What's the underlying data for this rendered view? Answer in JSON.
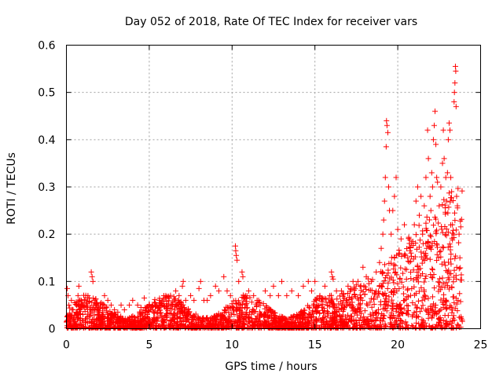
{
  "chart_data": {
    "type": "scatter",
    "title": "Day 052 of 2018, Rate Of TEC Index for receiver vars",
    "xlabel": "GPS time / hours",
    "ylabel": "ROTI / TECUs",
    "xlim": [
      0,
      25
    ],
    "ylim": [
      0,
      0.6
    ],
    "xticks": [
      0,
      5,
      10,
      15,
      20,
      25
    ],
    "xtick_labels": [
      "0",
      "5",
      "10",
      "15",
      "20",
      "25"
    ],
    "yticks": [
      0,
      0.1,
      0.2,
      0.3,
      0.4,
      0.5,
      0.6
    ],
    "ytick_labels": [
      "0",
      "0.1",
      "0.2",
      "0.3",
      "0.4",
      "0.5",
      "0.6"
    ],
    "grid": true,
    "marker": "+",
    "color": "#ff0000",
    "series": [
      {
        "name": "ROTI",
        "points": [
          [
            0.05,
            0.085
          ],
          [
            0.1,
            0.07
          ],
          [
            0.15,
            0.05
          ],
          [
            0.2,
            0.03
          ],
          [
            0.3,
            0.06
          ],
          [
            0.4,
            0.04
          ],
          [
            0.5,
            0.055
          ],
          [
            0.6,
            0.035
          ],
          [
            0.7,
            0.07
          ],
          [
            0.75,
            0.09
          ],
          [
            0.8,
            0.04
          ],
          [
            0.9,
            0.05
          ],
          [
            1.0,
            0.03
          ],
          [
            1.1,
            0.06
          ],
          [
            1.2,
            0.045
          ],
          [
            1.3,
            0.07
          ],
          [
            1.5,
            0.12
          ],
          [
            1.55,
            0.11
          ],
          [
            1.6,
            0.1
          ],
          [
            1.7,
            0.06
          ],
          [
            1.8,
            0.05
          ],
          [
            1.9,
            0.04
          ],
          [
            2.0,
            0.03
          ],
          [
            2.1,
            0.055
          ],
          [
            2.3,
            0.07
          ],
          [
            2.5,
            0.06
          ],
          [
            2.7,
            0.05
          ],
          [
            2.9,
            0.04
          ],
          [
            3.1,
            0.035
          ],
          [
            3.3,
            0.05
          ],
          [
            3.5,
            0.04
          ],
          [
            3.8,
            0.05
          ],
          [
            4.0,
            0.06
          ],
          [
            4.3,
            0.05
          ],
          [
            4.5,
            0.045
          ],
          [
            4.7,
            0.065
          ],
          [
            5.0,
            0.05
          ],
          [
            5.2,
            0.04
          ],
          [
            5.4,
            0.05
          ],
          [
            5.6,
            0.06
          ],
          [
            5.8,
            0.05
          ],
          [
            6.0,
            0.07
          ],
          [
            6.2,
            0.065
          ],
          [
            6.4,
            0.05
          ],
          [
            6.6,
            0.08
          ],
          [
            6.8,
            0.07
          ],
          [
            7.0,
            0.09
          ],
          [
            7.05,
            0.1
          ],
          [
            7.2,
            0.06
          ],
          [
            7.5,
            0.07
          ],
          [
            7.7,
            0.06
          ],
          [
            8.0,
            0.085
          ],
          [
            8.1,
            0.1
          ],
          [
            8.3,
            0.06
          ],
          [
            8.5,
            0.06
          ],
          [
            8.7,
            0.07
          ],
          [
            9.0,
            0.09
          ],
          [
            9.2,
            0.08
          ],
          [
            9.5,
            0.11
          ],
          [
            9.7,
            0.08
          ],
          [
            9.9,
            0.07
          ],
          [
            10.2,
            0.175
          ],
          [
            10.22,
            0.165
          ],
          [
            10.25,
            0.155
          ],
          [
            10.3,
            0.145
          ],
          [
            10.4,
            0.1
          ],
          [
            10.6,
            0.12
          ],
          [
            10.65,
            0.11
          ],
          [
            10.8,
            0.07
          ],
          [
            11.0,
            0.08
          ],
          [
            11.3,
            0.07
          ],
          [
            11.6,
            0.06
          ],
          [
            12.0,
            0.08
          ],
          [
            12.3,
            0.07
          ],
          [
            12.5,
            0.09
          ],
          [
            12.8,
            0.07
          ],
          [
            13.0,
            0.1
          ],
          [
            13.3,
            0.07
          ],
          [
            13.6,
            0.08
          ],
          [
            14.0,
            0.07
          ],
          [
            14.3,
            0.09
          ],
          [
            14.6,
            0.1
          ],
          [
            14.8,
            0.08
          ],
          [
            15.0,
            0.1
          ],
          [
            15.3,
            0.07
          ],
          [
            15.6,
            0.09
          ],
          [
            15.9,
            0.07
          ],
          [
            16.0,
            0.12
          ],
          [
            16.05,
            0.11
          ],
          [
            16.1,
            0.105
          ],
          [
            16.3,
            0.08
          ],
          [
            16.6,
            0.08
          ],
          [
            17.0,
            0.09
          ],
          [
            17.3,
            0.1
          ],
          [
            17.6,
            0.1
          ],
          [
            17.9,
            0.13
          ],
          [
            18.1,
            0.11
          ],
          [
            18.4,
            0.1
          ],
          [
            18.7,
            0.12
          ],
          [
            18.9,
            0.14
          ],
          [
            19.0,
            0.17
          ],
          [
            19.1,
            0.2
          ],
          [
            19.15,
            0.23
          ],
          [
            19.2,
            0.27
          ],
          [
            19.25,
            0.32
          ],
          [
            19.3,
            0.385
          ],
          [
            19.32,
            0.44
          ],
          [
            19.35,
            0.43
          ],
          [
            19.4,
            0.415
          ],
          [
            19.45,
            0.3
          ],
          [
            19.5,
            0.25
          ],
          [
            19.6,
            0.2
          ],
          [
            19.7,
            0.25
          ],
          [
            19.8,
            0.28
          ],
          [
            19.9,
            0.32
          ],
          [
            20.0,
            0.21
          ],
          [
            20.1,
            0.16
          ],
          [
            20.2,
            0.19
          ],
          [
            20.4,
            0.22
          ],
          [
            20.6,
            0.15
          ],
          [
            20.8,
            0.16
          ],
          [
            21.0,
            0.22
          ],
          [
            21.1,
            0.27
          ],
          [
            21.2,
            0.3
          ],
          [
            21.3,
            0.24
          ],
          [
            21.4,
            0.28
          ],
          [
            21.5,
            0.2
          ],
          [
            21.6,
            0.26
          ],
          [
            21.7,
            0.32
          ],
          [
            21.8,
            0.42
          ],
          [
            21.85,
            0.36
          ],
          [
            21.95,
            0.28
          ],
          [
            22.0,
            0.25
          ],
          [
            22.05,
            0.33
          ],
          [
            22.1,
            0.3
          ],
          [
            22.15,
            0.4
          ],
          [
            22.2,
            0.43
          ],
          [
            22.25,
            0.46
          ],
          [
            22.3,
            0.39
          ],
          [
            22.35,
            0.32
          ],
          [
            22.4,
            0.31
          ],
          [
            22.5,
            0.26
          ],
          [
            22.6,
            0.3
          ],
          [
            22.7,
            0.35
          ],
          [
            22.75,
            0.42
          ],
          [
            22.8,
            0.36
          ],
          [
            22.9,
            0.32
          ],
          [
            22.95,
            0.27
          ],
          [
            23.0,
            0.33
          ],
          [
            23.05,
            0.4
          ],
          [
            23.1,
            0.435
          ],
          [
            23.15,
            0.42
          ],
          [
            23.2,
            0.32
          ],
          [
            23.25,
            0.29
          ],
          [
            23.3,
            0.22
          ],
          [
            23.4,
            0.48
          ],
          [
            23.42,
            0.5
          ],
          [
            23.45,
            0.52
          ],
          [
            23.48,
            0.555
          ],
          [
            23.5,
            0.545
          ],
          [
            23.52,
            0.47
          ],
          [
            23.55,
            0.28
          ],
          [
            23.6,
            0.26
          ],
          [
            23.7,
            0.2
          ],
          [
            23.75,
            0.15
          ]
        ]
      }
    ]
  }
}
